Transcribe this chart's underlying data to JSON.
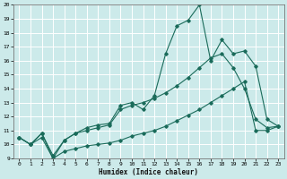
{
  "xlabel": "Humidex (Indice chaleur)",
  "bg_color": "#cceaea",
  "grid_color": "#ffffff",
  "line_color": "#1a6b5a",
  "xlim": [
    -0.5,
    23.5
  ],
  "ylim": [
    9,
    20
  ],
  "xticks": [
    0,
    1,
    2,
    3,
    4,
    5,
    6,
    7,
    8,
    9,
    10,
    11,
    12,
    13,
    14,
    15,
    16,
    17,
    18,
    19,
    20,
    21,
    22,
    23
  ],
  "yticks": [
    9,
    10,
    11,
    12,
    13,
    14,
    15,
    16,
    17,
    18,
    19,
    20
  ],
  "series": [
    {
      "x": [
        0,
        1,
        2,
        3,
        4,
        5,
        6,
        7,
        8,
        9,
        10,
        11,
        12,
        13,
        14,
        15,
        16,
        17,
        18,
        19,
        20,
        21,
        22,
        23
      ],
      "y": [
        10.5,
        10.0,
        10.8,
        9.0,
        10.3,
        10.8,
        11.2,
        11.4,
        11.5,
        12.8,
        13.0,
        12.5,
        13.5,
        16.5,
        18.5,
        18.9,
        20.0,
        16.0,
        17.5,
        16.5,
        16.7,
        15.6,
        11.8,
        11.3
      ]
    },
    {
      "x": [
        0,
        1,
        2,
        3,
        4,
        5,
        6,
        7,
        8,
        9,
        10,
        11,
        12,
        13,
        14,
        15,
        16,
        17,
        18,
        19,
        20,
        21,
        22,
        23
      ],
      "y": [
        10.5,
        10.0,
        10.8,
        9.2,
        10.3,
        10.8,
        11.0,
        11.2,
        11.4,
        12.5,
        12.8,
        13.0,
        13.3,
        13.7,
        14.2,
        14.8,
        15.5,
        16.2,
        16.5,
        15.5,
        14.0,
        11.8,
        11.2,
        11.3
      ]
    },
    {
      "x": [
        0,
        1,
        2,
        3,
        4,
        5,
        6,
        7,
        8,
        9,
        10,
        11,
        12,
        13,
        14,
        15,
        16,
        17,
        18,
        19,
        20,
        21,
        22,
        23
      ],
      "y": [
        10.5,
        10.0,
        10.5,
        9.0,
        9.5,
        9.7,
        9.9,
        10.0,
        10.1,
        10.3,
        10.6,
        10.8,
        11.0,
        11.3,
        11.7,
        12.1,
        12.5,
        13.0,
        13.5,
        14.0,
        14.5,
        11.0,
        11.0,
        11.3
      ]
    }
  ]
}
